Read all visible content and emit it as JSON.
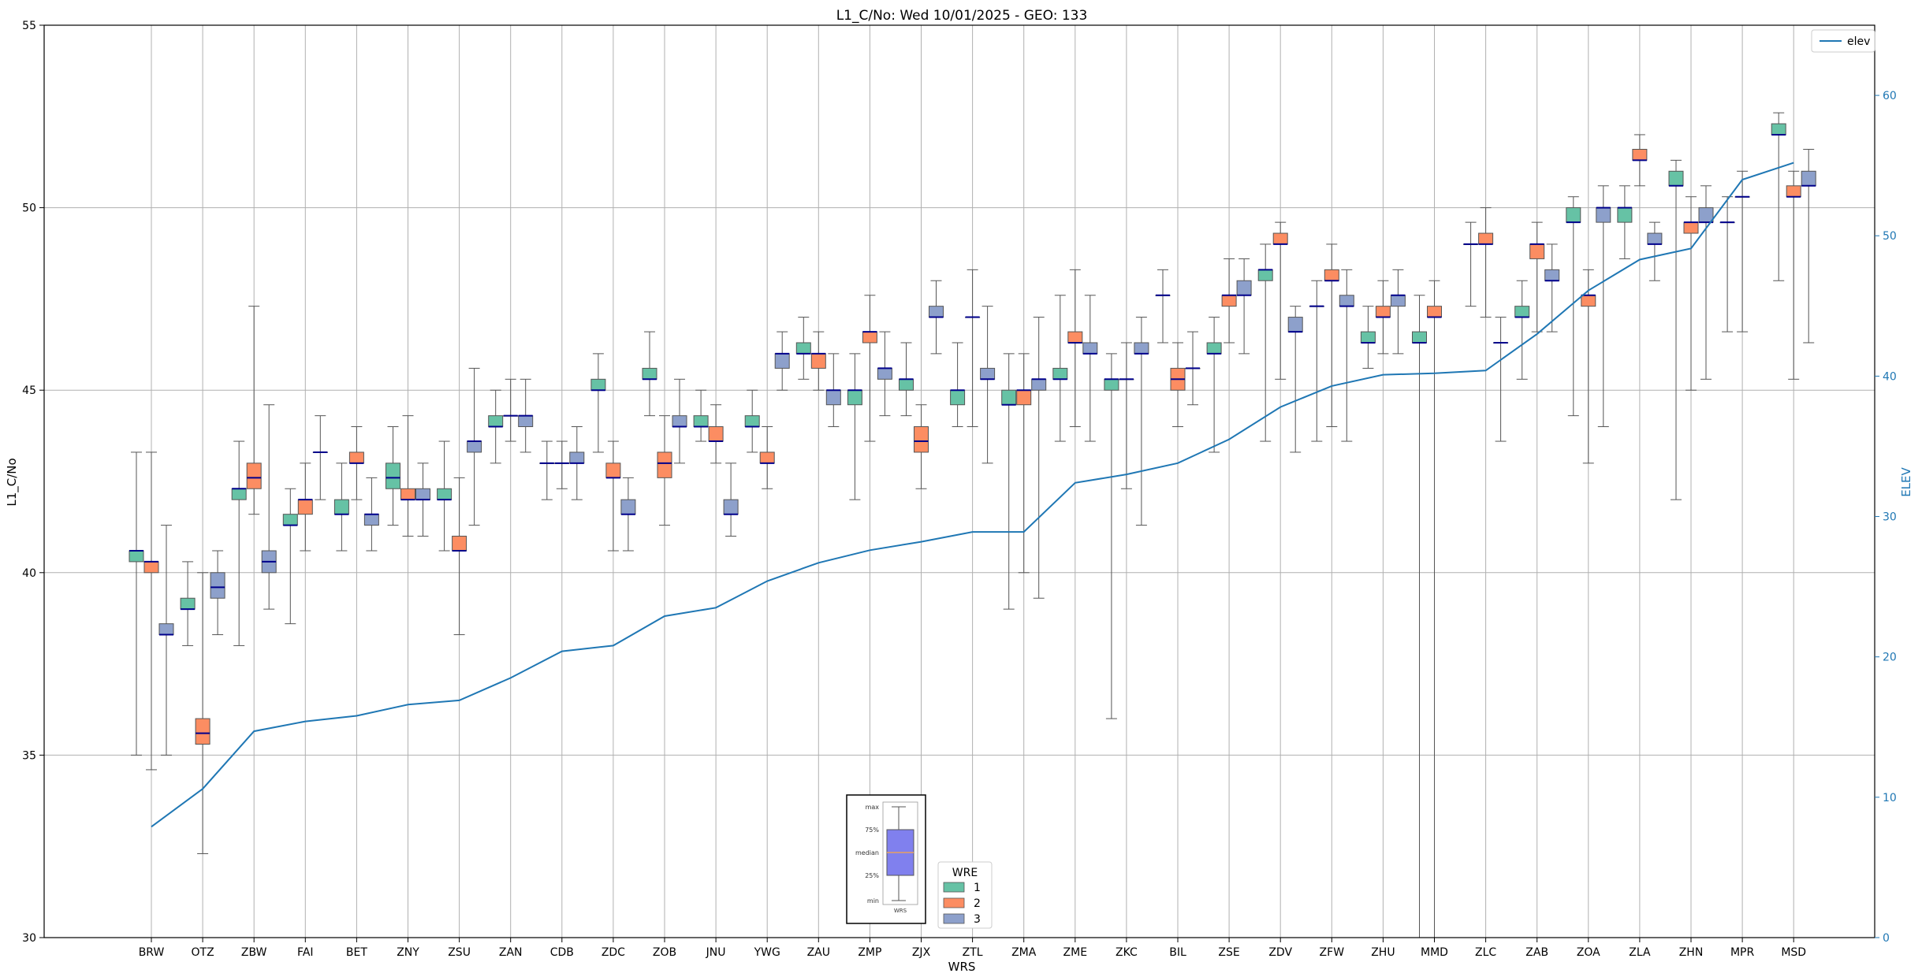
{
  "chart_data": {
    "type": "box",
    "title": "L1_C/No: Wed 10/01/2025 - GEO: 133",
    "xlabel": "WRS",
    "ylabel": "L1_C/No",
    "y2label": "ELEV",
    "ylim": [
      30,
      55
    ],
    "y2lim": [
      0,
      65
    ],
    "yticks": [
      30,
      35,
      40,
      45,
      50,
      55
    ],
    "y2ticks": [
      0,
      10,
      20,
      30,
      40,
      50,
      60
    ],
    "grid": true,
    "categories": [
      "BRW",
      "OTZ",
      "ZBW",
      "FAI",
      "BET",
      "ZNY",
      "ZSU",
      "ZAN",
      "CDB",
      "ZDC",
      "ZOB",
      "JNU",
      "YWG",
      "ZAU",
      "ZMP",
      "ZJX",
      "ZTL",
      "ZMA",
      "ZME",
      "ZKC",
      "BIL",
      "ZSE",
      "ZDV",
      "ZFW",
      "ZHU",
      "MMD",
      "ZLC",
      "ZAB",
      "ZOA",
      "ZLA",
      "ZHN",
      "MPR",
      "MSD"
    ],
    "box_legend": {
      "title": "WRE",
      "entries": [
        {
          "label": "1",
          "color": "#66c2a5"
        },
        {
          "label": "2",
          "color": "#fc8d62"
        },
        {
          "label": "3",
          "color": "#8da0cb"
        }
      ]
    },
    "line_legend": {
      "label": "elev",
      "color": "#1f77b4"
    },
    "inset": {
      "labels": [
        "max",
        "75%",
        "median",
        "25%",
        "min"
      ],
      "xlabel": "WRS"
    },
    "boxes": [
      {
        "cat": "BRW",
        "wre": 1,
        "min": 35.0,
        "q1": 40.3,
        "med": 40.6,
        "q3": 40.6,
        "max": 43.3
      },
      {
        "cat": "BRW",
        "wre": 2,
        "min": 34.6,
        "q1": 40.0,
        "med": 40.3,
        "q3": 40.3,
        "max": 43.3
      },
      {
        "cat": "BRW",
        "wre": 3,
        "min": 35.0,
        "q1": 38.3,
        "med": 38.3,
        "q3": 38.6,
        "max": 41.3
      },
      {
        "cat": "OTZ",
        "wre": 1,
        "min": 38.0,
        "q1": 39.0,
        "med": 39.0,
        "q3": 39.3,
        "max": 40.3
      },
      {
        "cat": "OTZ",
        "wre": 2,
        "min": 32.3,
        "q1": 35.3,
        "med": 35.6,
        "q3": 36.0,
        "max": 40.0
      },
      {
        "cat": "OTZ",
        "wre": 3,
        "min": 38.3,
        "q1": 39.3,
        "med": 39.6,
        "q3": 40.0,
        "max": 40.6
      },
      {
        "cat": "ZBW",
        "wre": 1,
        "min": 38.0,
        "q1": 42.0,
        "med": 42.3,
        "q3": 42.3,
        "max": 43.6
      },
      {
        "cat": "ZBW",
        "wre": 2,
        "min": 41.6,
        "q1": 42.3,
        "med": 42.6,
        "q3": 43.0,
        "max": 47.3
      },
      {
        "cat": "ZBW",
        "wre": 3,
        "min": 39.0,
        "q1": 40.0,
        "med": 40.3,
        "q3": 40.6,
        "max": 44.6
      },
      {
        "cat": "FAI",
        "wre": 1,
        "min": 38.6,
        "q1": 41.3,
        "med": 41.3,
        "q3": 41.6,
        "max": 42.3
      },
      {
        "cat": "FAI",
        "wre": 2,
        "min": 40.6,
        "q1": 41.6,
        "med": 42.0,
        "q3": 42.0,
        "max": 43.0
      },
      {
        "cat": "FAI",
        "wre": 3,
        "min": 42.0,
        "q1": 43.3,
        "med": 43.3,
        "q3": 43.3,
        "max": 44.3
      },
      {
        "cat": "BET",
        "wre": 1,
        "min": 40.6,
        "q1": 41.6,
        "med": 41.6,
        "q3": 42.0,
        "max": 43.0
      },
      {
        "cat": "BET",
        "wre": 2,
        "min": 42.0,
        "q1": 43.0,
        "med": 43.0,
        "q3": 43.3,
        "max": 44.0
      },
      {
        "cat": "BET",
        "wre": 3,
        "min": 40.6,
        "q1": 41.3,
        "med": 41.6,
        "q3": 41.6,
        "max": 42.6
      },
      {
        "cat": "ZNY",
        "wre": 1,
        "min": 41.3,
        "q1": 42.3,
        "med": 42.6,
        "q3": 43.0,
        "max": 44.0
      },
      {
        "cat": "ZNY",
        "wre": 2,
        "min": 41.0,
        "q1": 42.0,
        "med": 42.0,
        "q3": 42.3,
        "max": 44.3
      },
      {
        "cat": "ZNY",
        "wre": 3,
        "min": 41.0,
        "q1": 42.0,
        "med": 42.0,
        "q3": 42.3,
        "max": 43.0
      },
      {
        "cat": "ZSU",
        "wre": 1,
        "min": 40.6,
        "q1": 42.0,
        "med": 42.0,
        "q3": 42.3,
        "max": 43.6
      },
      {
        "cat": "ZSU",
        "wre": 2,
        "min": 38.3,
        "q1": 40.6,
        "med": 40.6,
        "q3": 41.0,
        "max": 42.6
      },
      {
        "cat": "ZSU",
        "wre": 3,
        "min": 41.3,
        "q1": 43.3,
        "med": 43.6,
        "q3": 43.6,
        "max": 45.6
      },
      {
        "cat": "ZAN",
        "wre": 1,
        "min": 43.0,
        "q1": 44.0,
        "med": 44.0,
        "q3": 44.3,
        "max": 45.0
      },
      {
        "cat": "ZAN",
        "wre": 2,
        "min": 43.6,
        "q1": 44.3,
        "med": 44.3,
        "q3": 44.3,
        "max": 45.3
      },
      {
        "cat": "ZAN",
        "wre": 3,
        "min": 43.3,
        "q1": 44.0,
        "med": 44.3,
        "q3": 44.3,
        "max": 45.3
      },
      {
        "cat": "CDB",
        "wre": 1,
        "min": 42.0,
        "q1": 43.0,
        "med": 43.0,
        "q3": 43.0,
        "max": 43.6
      },
      {
        "cat": "CDB",
        "wre": 2,
        "min": 42.3,
        "q1": 43.0,
        "med": 43.0,
        "q3": 43.0,
        "max": 43.6
      },
      {
        "cat": "CDB",
        "wre": 3,
        "min": 42.0,
        "q1": 43.0,
        "med": 43.0,
        "q3": 43.3,
        "max": 44.0
      },
      {
        "cat": "ZDC",
        "wre": 1,
        "min": 43.3,
        "q1": 45.0,
        "med": 45.0,
        "q3": 45.3,
        "max": 46.0
      },
      {
        "cat": "ZDC",
        "wre": 2,
        "min": 40.6,
        "q1": 42.6,
        "med": 42.6,
        "q3": 43.0,
        "max": 43.6
      },
      {
        "cat": "ZDC",
        "wre": 3,
        "min": 40.6,
        "q1": 41.6,
        "med": 41.6,
        "q3": 42.0,
        "max": 42.6
      },
      {
        "cat": "ZOB",
        "wre": 1,
        "min": 44.3,
        "q1": 45.3,
        "med": 45.3,
        "q3": 45.6,
        "max": 46.6
      },
      {
        "cat": "ZOB",
        "wre": 2,
        "min": 41.3,
        "q1": 42.6,
        "med": 43.0,
        "q3": 43.3,
        "max": 44.3
      },
      {
        "cat": "ZOB",
        "wre": 3,
        "min": 43.0,
        "q1": 44.0,
        "med": 44.0,
        "q3": 44.3,
        "max": 45.3
      },
      {
        "cat": "JNU",
        "wre": 1,
        "min": 43.6,
        "q1": 44.0,
        "med": 44.0,
        "q3": 44.3,
        "max": 45.0
      },
      {
        "cat": "JNU",
        "wre": 2,
        "min": 43.0,
        "q1": 43.6,
        "med": 43.6,
        "q3": 44.0,
        "max": 44.6
      },
      {
        "cat": "JNU",
        "wre": 3,
        "min": 41.0,
        "q1": 41.6,
        "med": 41.6,
        "q3": 42.0,
        "max": 43.0
      },
      {
        "cat": "YWG",
        "wre": 1,
        "min": 43.3,
        "q1": 44.0,
        "med": 44.0,
        "q3": 44.3,
        "max": 45.0
      },
      {
        "cat": "YWG",
        "wre": 2,
        "min": 42.3,
        "q1": 43.0,
        "med": 43.0,
        "q3": 43.3,
        "max": 44.0
      },
      {
        "cat": "YWG",
        "wre": 3,
        "min": 45.0,
        "q1": 45.6,
        "med": 46.0,
        "q3": 46.0,
        "max": 46.6
      },
      {
        "cat": "ZAU",
        "wre": 1,
        "min": 45.3,
        "q1": 46.0,
        "med": 46.0,
        "q3": 46.3,
        "max": 47.0
      },
      {
        "cat": "ZAU",
        "wre": 2,
        "min": 45.0,
        "q1": 45.6,
        "med": 46.0,
        "q3": 46.0,
        "max": 46.6
      },
      {
        "cat": "ZAU",
        "wre": 3,
        "min": 44.0,
        "q1": 44.6,
        "med": 45.0,
        "q3": 45.0,
        "max": 46.0
      },
      {
        "cat": "ZMP",
        "wre": 1,
        "min": 42.0,
        "q1": 44.6,
        "med": 45.0,
        "q3": 45.0,
        "max": 46.0
      },
      {
        "cat": "ZMP",
        "wre": 2,
        "min": 43.6,
        "q1": 46.3,
        "med": 46.6,
        "q3": 46.6,
        "max": 47.6
      },
      {
        "cat": "ZMP",
        "wre": 3,
        "min": 44.3,
        "q1": 45.3,
        "med": 45.6,
        "q3": 45.6,
        "max": 46.6
      },
      {
        "cat": "ZJX",
        "wre": 1,
        "min": 44.3,
        "q1": 45.0,
        "med": 45.3,
        "q3": 45.3,
        "max": 46.3
      },
      {
        "cat": "ZJX",
        "wre": 2,
        "min": 42.3,
        "q1": 43.3,
        "med": 43.6,
        "q3": 44.0,
        "max": 44.6
      },
      {
        "cat": "ZJX",
        "wre": 3,
        "min": 46.0,
        "q1": 47.0,
        "med": 47.0,
        "q3": 47.3,
        "max": 48.0
      },
      {
        "cat": "ZTL",
        "wre": 1,
        "min": 44.0,
        "q1": 44.6,
        "med": 45.0,
        "q3": 45.0,
        "max": 46.3
      },
      {
        "cat": "ZTL",
        "wre": 2,
        "min": 44.0,
        "q1": 47.0,
        "med": 47.0,
        "q3": 47.0,
        "max": 48.3
      },
      {
        "cat": "ZTL",
        "wre": 3,
        "min": 43.0,
        "q1": 45.3,
        "med": 45.3,
        "q3": 45.6,
        "max": 47.3
      },
      {
        "cat": "ZMA",
        "wre": 1,
        "min": 39.0,
        "q1": 44.6,
        "med": 44.6,
        "q3": 45.0,
        "max": 46.0
      },
      {
        "cat": "ZMA",
        "wre": 2,
        "min": 40.0,
        "q1": 44.6,
        "med": 45.0,
        "q3": 45.0,
        "max": 46.0
      },
      {
        "cat": "ZMA",
        "wre": 3,
        "min": 39.3,
        "q1": 45.0,
        "med": 45.3,
        "q3": 45.3,
        "max": 47.0
      },
      {
        "cat": "ZME",
        "wre": 1,
        "min": 43.6,
        "q1": 45.3,
        "med": 45.3,
        "q3": 45.6,
        "max": 47.6
      },
      {
        "cat": "ZME",
        "wre": 2,
        "min": 44.0,
        "q1": 46.3,
        "med": 46.3,
        "q3": 46.6,
        "max": 48.3
      },
      {
        "cat": "ZME",
        "wre": 3,
        "min": 43.6,
        "q1": 46.0,
        "med": 46.0,
        "q3": 46.3,
        "max": 47.6
      },
      {
        "cat": "ZKC",
        "wre": 1,
        "min": 36.0,
        "q1": 45.0,
        "med": 45.3,
        "q3": 45.3,
        "max": 46.0
      },
      {
        "cat": "ZKC",
        "wre": 2,
        "min": 42.3,
        "q1": 45.3,
        "med": 45.3,
        "q3": 45.3,
        "max": 46.3
      },
      {
        "cat": "ZKC",
        "wre": 3,
        "min": 41.3,
        "q1": 46.0,
        "med": 46.0,
        "q3": 46.3,
        "max": 47.0
      },
      {
        "cat": "BIL",
        "wre": 1,
        "min": 46.3,
        "q1": 47.6,
        "med": 47.6,
        "q3": 47.6,
        "max": 48.3
      },
      {
        "cat": "BIL",
        "wre": 2,
        "min": 44.0,
        "q1": 45.0,
        "med": 45.3,
        "q3": 45.6,
        "max": 46.3
      },
      {
        "cat": "BIL",
        "wre": 3,
        "min": 44.6,
        "q1": 45.6,
        "med": 45.6,
        "q3": 45.6,
        "max": 46.6
      },
      {
        "cat": "ZSE",
        "wre": 1,
        "min": 43.3,
        "q1": 46.0,
        "med": 46.0,
        "q3": 46.3,
        "max": 47.0
      },
      {
        "cat": "ZSE",
        "wre": 2,
        "min": 46.3,
        "q1": 47.3,
        "med": 47.6,
        "q3": 47.6,
        "max": 48.6
      },
      {
        "cat": "ZSE",
        "wre": 3,
        "min": 46.0,
        "q1": 47.6,
        "med": 47.6,
        "q3": 48.0,
        "max": 48.6
      },
      {
        "cat": "ZDV",
        "wre": 1,
        "min": 43.6,
        "q1": 48.0,
        "med": 48.3,
        "q3": 48.3,
        "max": 49.0
      },
      {
        "cat": "ZDV",
        "wre": 2,
        "min": 45.3,
        "q1": 49.0,
        "med": 49.0,
        "q3": 49.3,
        "max": 49.6
      },
      {
        "cat": "ZDV",
        "wre": 3,
        "min": 43.3,
        "q1": 46.6,
        "med": 46.6,
        "q3": 47.0,
        "max": 47.3
      },
      {
        "cat": "ZFW",
        "wre": 1,
        "min": 43.6,
        "q1": 47.3,
        "med": 47.3,
        "q3": 47.3,
        "max": 48.0
      },
      {
        "cat": "ZFW",
        "wre": 2,
        "min": 44.0,
        "q1": 48.0,
        "med": 48.0,
        "q3": 48.3,
        "max": 49.0
      },
      {
        "cat": "ZFW",
        "wre": 3,
        "min": 43.6,
        "q1": 47.3,
        "med": 47.3,
        "q3": 47.6,
        "max": 48.3
      },
      {
        "cat": "ZHU",
        "wre": 1,
        "min": 45.6,
        "q1": 46.3,
        "med": 46.3,
        "q3": 46.6,
        "max": 47.3
      },
      {
        "cat": "ZHU",
        "wre": 2,
        "min": 46.0,
        "q1": 47.0,
        "med": 47.0,
        "q3": 47.3,
        "max": 48.0
      },
      {
        "cat": "ZHU",
        "wre": 3,
        "min": 46.0,
        "q1": 47.3,
        "med": 47.6,
        "q3": 47.6,
        "max": 48.3
      },
      {
        "cat": "MMD",
        "wre": 1,
        "min": 30.0,
        "q1": 46.3,
        "med": 46.3,
        "q3": 46.6,
        "max": 47.6
      },
      {
        "cat": "MMD",
        "wre": 2,
        "min": 30.0,
        "q1": 47.0,
        "med": 47.0,
        "q3": 47.3,
        "max": 48.0
      },
      {
        "cat": "ZLC",
        "wre": 1,
        "min": 47.3,
        "q1": 49.0,
        "med": 49.0,
        "q3": 49.0,
        "max": 49.6
      },
      {
        "cat": "ZLC",
        "wre": 2,
        "min": 47.0,
        "q1": 49.0,
        "med": 49.0,
        "q3": 49.3,
        "max": 50.0
      },
      {
        "cat": "ZLC",
        "wre": 3,
        "min": 43.6,
        "q1": 46.3,
        "med": 46.3,
        "q3": 46.3,
        "max": 47.0
      },
      {
        "cat": "ZAB",
        "wre": 1,
        "min": 45.3,
        "q1": 47.0,
        "med": 47.0,
        "q3": 47.3,
        "max": 48.0
      },
      {
        "cat": "ZAB",
        "wre": 2,
        "min": 46.6,
        "q1": 48.6,
        "med": 49.0,
        "q3": 49.0,
        "max": 49.6
      },
      {
        "cat": "ZAB",
        "wre": 3,
        "min": 46.6,
        "q1": 48.0,
        "med": 48.0,
        "q3": 48.3,
        "max": 49.0
      },
      {
        "cat": "ZOA",
        "wre": 1,
        "min": 44.3,
        "q1": 49.6,
        "med": 49.6,
        "q3": 50.0,
        "max": 50.3
      },
      {
        "cat": "ZOA",
        "wre": 2,
        "min": 43.0,
        "q1": 47.3,
        "med": 47.6,
        "q3": 47.6,
        "max": 48.3
      },
      {
        "cat": "ZOA",
        "wre": 3,
        "min": 44.0,
        "q1": 49.6,
        "med": 50.0,
        "q3": 50.0,
        "max": 50.6
      },
      {
        "cat": "ZLA",
        "wre": 1,
        "min": 48.6,
        "q1": 49.6,
        "med": 50.0,
        "q3": 50.0,
        "max": 50.6
      },
      {
        "cat": "ZLA",
        "wre": 2,
        "min": 50.6,
        "q1": 51.3,
        "med": 51.3,
        "q3": 51.6,
        "max": 52.0
      },
      {
        "cat": "ZLA",
        "wre": 3,
        "min": 48.0,
        "q1": 49.0,
        "med": 49.0,
        "q3": 49.3,
        "max": 49.6
      },
      {
        "cat": "ZHN",
        "wre": 1,
        "min": 42.0,
        "q1": 50.6,
        "med": 50.6,
        "q3": 51.0,
        "max": 51.3
      },
      {
        "cat": "ZHN",
        "wre": 2,
        "min": 45.0,
        "q1": 49.3,
        "med": 49.6,
        "q3": 49.6,
        "max": 50.3
      },
      {
        "cat": "ZHN",
        "wre": 3,
        "min": 45.3,
        "q1": 49.6,
        "med": 49.6,
        "q3": 50.0,
        "max": 50.6
      },
      {
        "cat": "MPR",
        "wre": 1,
        "min": 46.6,
        "q1": 49.6,
        "med": 49.6,
        "q3": 49.6,
        "max": 50.3
      },
      {
        "cat": "MPR",
        "wre": 2,
        "min": 46.6,
        "q1": 50.3,
        "med": 50.3,
        "q3": 50.3,
        "max": 51.0
      },
      {
        "cat": "MSD",
        "wre": 1,
        "min": 48.0,
        "q1": 52.0,
        "med": 52.0,
        "q3": 52.3,
        "max": 52.6
      },
      {
        "cat": "MSD",
        "wre": 2,
        "min": 45.3,
        "q1": 50.3,
        "med": 50.3,
        "q3": 50.6,
        "max": 51.0
      },
      {
        "cat": "MSD",
        "wre": 3,
        "min": 46.3,
        "q1": 50.6,
        "med": 50.6,
        "q3": 51.0,
        "max": 51.6
      }
    ],
    "elev_line": {
      "name": "elev",
      "x": [
        "BRW",
        "OTZ",
        "ZBW",
        "FAI",
        "BET",
        "ZNY",
        "ZSU",
        "ZAN",
        "CDB",
        "ZDC",
        "ZOB",
        "JNU",
        "YWG",
        "ZAU",
        "ZMP",
        "ZJX",
        "ZTL",
        "ZMA",
        "ZME",
        "ZKC",
        "BIL",
        "ZSE",
        "ZDV",
        "ZFW",
        "ZHU",
        "MMD",
        "ZLC",
        "ZAB",
        "ZOA",
        "ZLA",
        "ZHN",
        "MPR",
        "MSD"
      ],
      "values": [
        7.9,
        10.6,
        14.7,
        15.4,
        15.8,
        16.6,
        16.9,
        18.5,
        20.4,
        20.8,
        22.9,
        23.5,
        25.4,
        26.7,
        27.6,
        28.2,
        28.9,
        28.9,
        32.4,
        33.0,
        33.8,
        35.5,
        37.8,
        39.3,
        40.1,
        40.2,
        40.4,
        43.0,
        46.1,
        48.3,
        49.1,
        54.0,
        55.2
      ]
    }
  }
}
